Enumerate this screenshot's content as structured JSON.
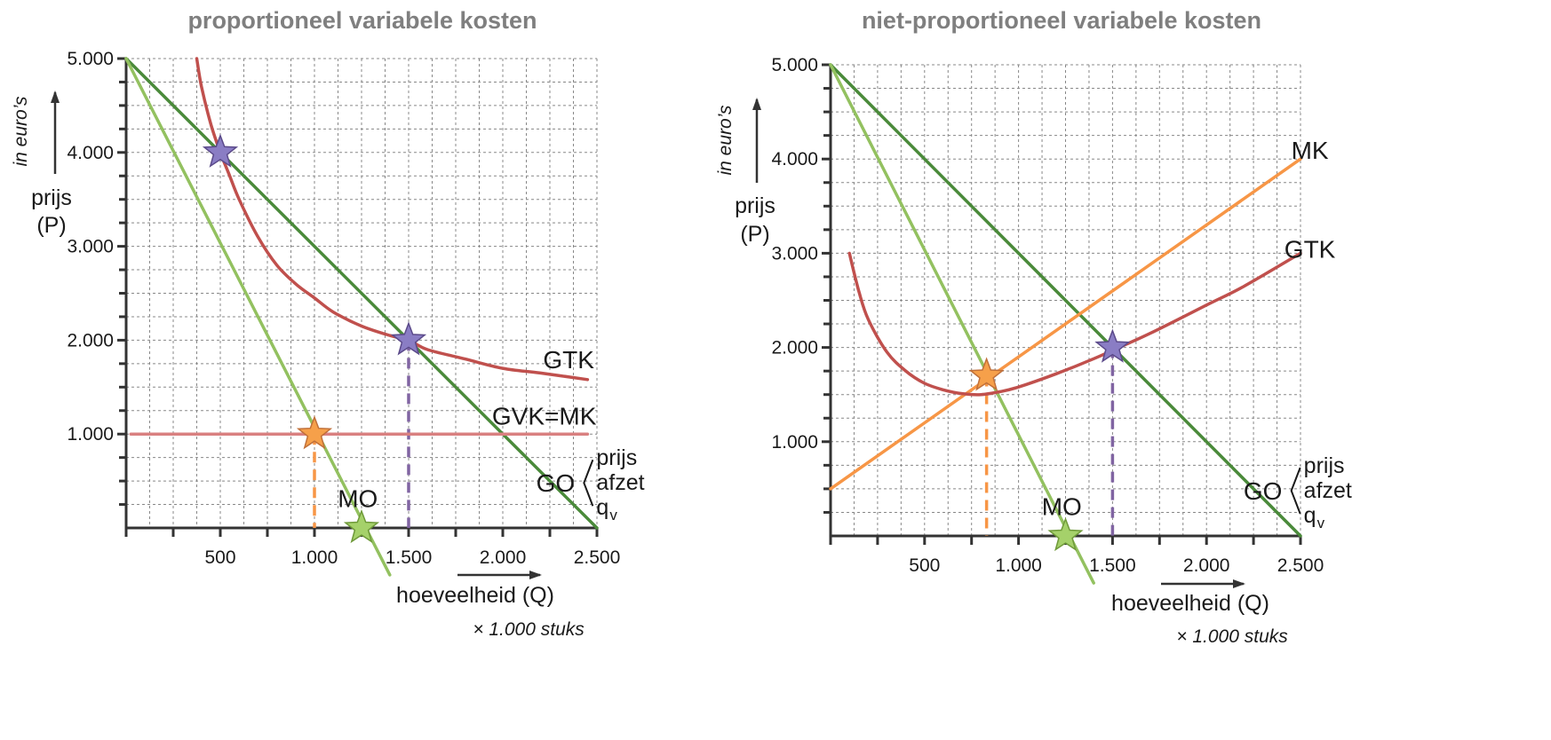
{
  "chart_data": [
    {
      "type": "line",
      "title": "proportioneel variabele kosten",
      "xlabel": "hoeveelheid (Q)",
      "x_unit": "× 1.000 stuks",
      "ylabel_line1": "prijs",
      "ylabel_line2": "(P)",
      "y_unit": "in euro’s",
      "xlim": [
        0,
        2500
      ],
      "ylim": [
        0,
        5000
      ],
      "x_ticks": [
        500,
        1000,
        1500,
        2000,
        2500
      ],
      "x_tick_labels": [
        "500",
        "1.000",
        "1.500",
        "2.000",
        "2.500"
      ],
      "y_ticks": [
        1000,
        2000,
        3000,
        4000,
        5000
      ],
      "y_tick_labels": [
        "1.000",
        "2.000",
        "3.000",
        "4.000",
        "5.000"
      ],
      "grid": true,
      "series": [
        {
          "key": "go",
          "color": "#4a8a3a",
          "width": 3.5,
          "x": [
            0,
            2500
          ],
          "y": [
            5000,
            0
          ]
        },
        {
          "key": "mo",
          "color": "#93c160",
          "width": 3.5,
          "x": [
            0,
            1400
          ],
          "y": [
            5000,
            -500
          ]
        },
        {
          "key": "gtk",
          "color": "#c0504d",
          "width": 3.5,
          "x": [
            375,
            400,
            450,
            500,
            550,
            600,
            700,
            800,
            900,
            1000,
            1100,
            1250,
            1400,
            1500,
            1600,
            1800,
            2000,
            2200,
            2450
          ],
          "y": [
            5000,
            4700,
            4300,
            4000,
            3750,
            3500,
            3100,
            2800,
            2600,
            2450,
            2300,
            2150,
            2050,
            2000,
            1900,
            1800,
            1700,
            1650,
            1580
          ]
        },
        {
          "key": "gvk",
          "color": "#d98080",
          "width": 3.5,
          "x": [
            25,
            2450
          ],
          "y": [
            1000,
            1000
          ]
        }
      ],
      "dashes": [
        {
          "color": "#f79646",
          "x": 1000,
          "y_from": 1000,
          "y_to": 0
        },
        {
          "color": "#8064a2",
          "x": 1500,
          "y_from": 2000,
          "y_to": 0
        }
      ],
      "stars": [
        {
          "x": 500,
          "y": 4000,
          "fill": "#8a7dc4",
          "stroke": "#5b4a8a"
        },
        {
          "x": 1500,
          "y": 2000,
          "fill": "#8a7dc4",
          "stroke": "#5b4a8a"
        },
        {
          "x": 1000,
          "y": 1000,
          "fill": "#f6a04a",
          "stroke": "#c0703a"
        },
        {
          "x": 1250,
          "y": 0,
          "fill": "#a5d16a",
          "stroke": "#6f9a3a"
        }
      ],
      "labels": [
        {
          "text": "GTK",
          "x": 2350,
          "y": 1700
        },
        {
          "text": "GVK=MK",
          "x": 2220,
          "y": 1100
        },
        {
          "text": "MO",
          "x": 1230,
          "y": 220
        }
      ],
      "go_annotation": {
        "label": "GO",
        "items": [
          "prijs",
          "afzet",
          "q"
        ],
        "subscript": "v",
        "x": 2280,
        "y": 480
      }
    },
    {
      "type": "line",
      "title": "niet-proportioneel variabele kosten",
      "xlabel": "hoeveelheid (Q)",
      "x_unit": "× 1.000 stuks",
      "ylabel_line1": "prijs",
      "ylabel_line2": "(P)",
      "y_unit": "in euro’s",
      "xlim": [
        0,
        2500
      ],
      "ylim": [
        0,
        5000
      ],
      "x_ticks": [
        500,
        1000,
        1500,
        2000,
        2500
      ],
      "x_tick_labels": [
        "500",
        "1.000",
        "1.500",
        "2.000",
        "2.500"
      ],
      "y_ticks": [
        1000,
        2000,
        3000,
        4000,
        5000
      ],
      "y_tick_labels": [
        "1.000",
        "2.000",
        "3.000",
        "4.000",
        "5.000"
      ],
      "grid": true,
      "series": [
        {
          "key": "go",
          "color": "#4a8a3a",
          "width": 3.5,
          "x": [
            0,
            2500
          ],
          "y": [
            5000,
            0
          ]
        },
        {
          "key": "mo",
          "color": "#93c160",
          "width": 3.5,
          "x": [
            0,
            1400
          ],
          "y": [
            5000,
            -500
          ]
        },
        {
          "key": "mk",
          "color": "#f79646",
          "width": 3.5,
          "x": [
            0,
            2500
          ],
          "y": [
            500,
            4000
          ]
        },
        {
          "key": "gtk",
          "color": "#c0504d",
          "width": 3.5,
          "x": [
            100,
            150,
            200,
            300,
            400,
            500,
            600,
            700,
            800,
            900,
            1000,
            1200,
            1400,
            1500,
            1700,
            2000,
            2200,
            2500
          ],
          "y": [
            3000,
            2600,
            2300,
            1950,
            1750,
            1620,
            1550,
            1510,
            1500,
            1530,
            1580,
            1720,
            1880,
            1970,
            2150,
            2450,
            2650,
            3000
          ]
        }
      ],
      "dashes": [
        {
          "color": "#f79646",
          "x": 830,
          "y_from": 1700,
          "y_to": 0
        },
        {
          "color": "#8064a2",
          "x": 1500,
          "y_from": 2000,
          "y_to": 0
        }
      ],
      "stars": [
        {
          "x": 1500,
          "y": 2000,
          "fill": "#8a7dc4",
          "stroke": "#5b4a8a"
        },
        {
          "x": 830,
          "y": 1700,
          "fill": "#f6a04a",
          "stroke": "#c0703a"
        },
        {
          "x": 1250,
          "y": 0,
          "fill": "#a5d16a",
          "stroke": "#6f9a3a"
        }
      ],
      "labels": [
        {
          "text": "MK",
          "x": 2550,
          "y": 4000
        },
        {
          "text": "GTK",
          "x": 2550,
          "y": 2950
        },
        {
          "text": "MO",
          "x": 1230,
          "y": 220
        }
      ],
      "go_annotation": {
        "label": "GO",
        "items": [
          "prijs",
          "afzet",
          "q"
        ],
        "subscript": "v",
        "x": 2300,
        "y": 480
      }
    }
  ]
}
